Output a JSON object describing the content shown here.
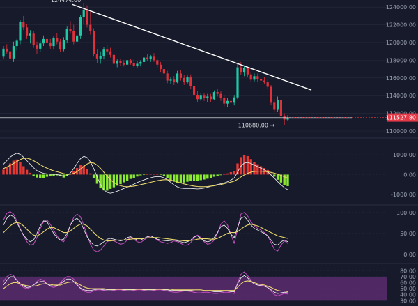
{
  "colors": {
    "background": "#161a2b",
    "up": "#1ec9a4",
    "down": "#e0303a",
    "hist_pos": "#e53935",
    "hist_neg": "#8bea2e",
    "line_white": "#e8e8ea",
    "line_yellow": "#ecd86a",
    "line_pink": "#c64fc0",
    "rsi_band": "#5b2d6e",
    "current_tag": "#e53947",
    "grid": "#262b3d",
    "axis_text": "#9aa0ad"
  },
  "chart_data": [
    {
      "type": "candlestick",
      "name": "price",
      "y_ticks": [
        110000,
        112000,
        114000,
        116000,
        118000,
        120000,
        122000,
        124000
      ],
      "y_tick_labels": [
        "110000.00",
        "112000.00",
        "114000.00",
        "116000.00",
        "118000.00",
        "120000.00",
        "122000.00",
        "124000.00"
      ],
      "ylim": [
        110000,
        124800
      ],
      "current_price": 111527.8,
      "current_price_label": "111527.80",
      "top_label_partial": "124474.00",
      "annotation": "110680.00 →",
      "support_level": 111470,
      "trendline": {
        "from": [
          104,
          124300
        ],
        "to": [
          447,
          114630
        ]
      },
      "candles": [
        [
          118400,
          119600,
          118100,
          119300
        ],
        [
          119300,
          119800,
          118700,
          119000
        ],
        [
          119000,
          119200,
          117900,
          118200
        ],
        [
          118200,
          120100,
          117800,
          119600
        ],
        [
          119600,
          120400,
          119100,
          120200
        ],
        [
          120200,
          122600,
          119800,
          122300
        ],
        [
          122300,
          123000,
          121400,
          121700
        ],
        [
          121700,
          122100,
          120400,
          120800
        ],
        [
          120800,
          121400,
          119900,
          121000
        ],
        [
          121000,
          121300,
          119400,
          119700
        ],
        [
          119700,
          120100,
          118700,
          119300
        ],
        [
          119300,
          120200,
          118900,
          119900
        ],
        [
          119900,
          120800,
          119600,
          120400
        ],
        [
          120400,
          121100,
          119700,
          120000
        ],
        [
          120000,
          120400,
          119300,
          119600
        ],
        [
          119600,
          120700,
          119200,
          120500
        ],
        [
          120500,
          121100,
          119800,
          120100
        ],
        [
          120100,
          120400,
          118900,
          119200
        ],
        [
          119200,
          120600,
          119000,
          120300
        ],
        [
          120300,
          121800,
          120000,
          121500
        ],
        [
          121500,
          122400,
          121000,
          121300
        ],
        [
          121300,
          122000,
          119800,
          120100
        ],
        [
          120100,
          121000,
          119600,
          120800
        ],
        [
          120800,
          123100,
          120400,
          122900
        ],
        [
          122900,
          124474,
          122100,
          123700
        ],
        [
          123700,
          124200,
          121700,
          122000
        ],
        [
          122000,
          123600,
          120900,
          121300
        ],
        [
          121300,
          121600,
          118400,
          118700
        ],
        [
          118700,
          119200,
          117700,
          118200
        ],
        [
          118200,
          119000,
          117600,
          118500
        ],
        [
          118500,
          119500,
          118100,
          119200
        ],
        [
          119200,
          119800,
          118600,
          119000
        ],
        [
          119000,
          119400,
          118300,
          118600
        ],
        [
          118600,
          118800,
          117300,
          117600
        ],
        [
          117600,
          118100,
          117200,
          117900
        ],
        [
          117900,
          118200,
          117400,
          117700
        ],
        [
          117700,
          118000,
          117300,
          117500
        ],
        [
          117500,
          118300,
          117300,
          118000
        ],
        [
          118000,
          118200,
          117500,
          117700
        ],
        [
          117700,
          118100,
          117200,
          117400
        ],
        [
          117400,
          117900,
          117100,
          117600
        ],
        [
          117600,
          118000,
          117300,
          117800
        ],
        [
          117800,
          118500,
          117600,
          118300
        ],
        [
          118300,
          118700,
          117900,
          118100
        ],
        [
          118100,
          118600,
          117800,
          118400
        ],
        [
          118400,
          118800,
          117800,
          118000
        ],
        [
          118000,
          118200,
          117200,
          117500
        ],
        [
          117500,
          117800,
          116600,
          117000
        ],
        [
          117000,
          117300,
          116200,
          116500
        ],
        [
          116500,
          116800,
          115400,
          115700
        ],
        [
          115700,
          116100,
          115300,
          115800
        ],
        [
          115800,
          116200,
          115200,
          115500
        ],
        [
          115500,
          116800,
          115400,
          116500
        ],
        [
          116500,
          116900,
          115700,
          116000
        ],
        [
          116000,
          116300,
          115200,
          115500
        ],
        [
          115500,
          116300,
          115300,
          116100
        ],
        [
          116100,
          116400,
          114800,
          115100
        ],
        [
          115100,
          115400,
          113800,
          114100
        ],
        [
          114100,
          114500,
          113300,
          113600
        ],
        [
          113600,
          114300,
          113400,
          114000
        ],
        [
          114000,
          114300,
          113400,
          113700
        ],
        [
          113700,
          114200,
          113300,
          113900
        ],
        [
          113900,
          114200,
          113300,
          113600
        ],
        [
          113600,
          114600,
          113500,
          114400
        ],
        [
          114400,
          114800,
          113900,
          114200
        ],
        [
          114200,
          114500,
          113400,
          113700
        ],
        [
          113700,
          114000,
          112800,
          113100
        ],
        [
          113100,
          113700,
          112700,
          113400
        ],
        [
          113400,
          113800,
          112900,
          113200
        ],
        [
          113200,
          114000,
          112900,
          113800
        ],
        [
          113800,
          117600,
          113600,
          117200
        ],
        [
          117200,
          117800,
          116300,
          116600
        ],
        [
          116600,
          117400,
          116200,
          117100
        ],
        [
          117100,
          117300,
          116100,
          116400
        ],
        [
          116400,
          116600,
          115500,
          115800
        ],
        [
          115800,
          116500,
          115600,
          116200
        ],
        [
          116200,
          116500,
          115500,
          115900
        ],
        [
          115900,
          116200,
          115400,
          115700
        ],
        [
          115700,
          116100,
          115300,
          115500
        ],
        [
          115500,
          115800,
          114700,
          115000
        ],
        [
          115000,
          115200,
          112900,
          113200
        ],
        [
          113200,
          113600,
          112100,
          112400
        ],
        [
          112400,
          113900,
          112200,
          113500
        ],
        [
          113500,
          113800,
          111300,
          111700
        ],
        [
          111700,
          112000,
          110680,
          111300
        ],
        [
          111300,
          111800,
          111100,
          111527.8
        ]
      ]
    },
    {
      "type": "line_histogram",
      "name": "macd",
      "y_ticks": [
        1000,
        0,
        -1000
      ],
      "y_tick_labels": [
        "1000.00",
        "0.00",
        "-1000.00"
      ],
      "ylim": [
        -1250,
        1350
      ],
      "histogram": [
        250,
        400,
        560,
        700,
        760,
        620,
        420,
        240,
        90,
        -60,
        -150,
        -180,
        -160,
        -110,
        -90,
        -60,
        -40,
        -90,
        -150,
        -80,
        40,
        160,
        330,
        480,
        450,
        270,
        60,
        -180,
        -460,
        -690,
        -800,
        -810,
        -720,
        -640,
        -560,
        -480,
        -390,
        -300,
        -220,
        -160,
        -100,
        -40,
        -20,
        10,
        30,
        40,
        20,
        -20,
        -80,
        -170,
        -280,
        -360,
        -420,
        -430,
        -400,
        -360,
        -330,
        -320,
        -310,
        -280,
        -250,
        -210,
        -160,
        -110,
        -70,
        -30,
        10,
        60,
        120,
        160,
        560,
        880,
        980,
        930,
        780,
        640,
        520,
        420,
        330,
        230,
        60,
        -100,
        -260,
        -400,
        -520,
        -580
      ],
      "macd_line": [
        520,
        700,
        880,
        1000,
        1080,
        1020,
        880,
        700,
        520,
        340,
        200,
        120,
        60,
        40,
        20,
        10,
        0,
        -30,
        -80,
        -60,
        80,
        300,
        560,
        800,
        920,
        860,
        640,
        300,
        -120,
        -500,
        -760,
        -900,
        -940,
        -900,
        -840,
        -770,
        -700,
        -630,
        -560,
        -480,
        -400,
        -330,
        -270,
        -210,
        -160,
        -120,
        -100,
        -110,
        -160,
        -260,
        -390,
        -520,
        -620,
        -680,
        -700,
        -700,
        -700,
        -710,
        -720,
        -710,
        -680,
        -640,
        -590,
        -540,
        -500,
        -460,
        -420,
        -360,
        -280,
        -170,
        120,
        420,
        580,
        610,
        560,
        480,
        400,
        320,
        240,
        140,
        -20,
        -180,
        -360,
        -520,
        -660,
        -760
      ],
      "signal_line": [
        300,
        380,
        460,
        560,
        660,
        760,
        820,
        830,
        780,
        700,
        600,
        500,
        400,
        320,
        250,
        190,
        140,
        100,
        50,
        20,
        20,
        60,
        150,
        270,
        410,
        530,
        600,
        580,
        480,
        320,
        120,
        -80,
        -260,
        -400,
        -500,
        -560,
        -600,
        -610,
        -600,
        -580,
        -550,
        -510,
        -470,
        -430,
        -390,
        -350,
        -310,
        -280,
        -260,
        -260,
        -280,
        -320,
        -370,
        -420,
        -470,
        -510,
        -550,
        -580,
        -600,
        -610,
        -610,
        -600,
        -580,
        -560,
        -530,
        -500,
        -460,
        -420,
        -380,
        -330,
        -240,
        -120,
        -20,
        60,
        120,
        160,
        170,
        170,
        160,
        140,
        110,
        70,
        20,
        -40,
        -110,
        -180
      ]
    },
    {
      "type": "line",
      "name": "oscillator_1",
      "y_ticks": [
        100,
        50,
        0
      ],
      "y_tick_labels": [
        "100.00",
        "50.00",
        "0.00"
      ],
      "ylim": [
        -12,
        108
      ],
      "pink": [
        82,
        98,
        102,
        96,
        80,
        62,
        44,
        30,
        22,
        24,
        40,
        62,
        78,
        82,
        72,
        58,
        44,
        34,
        30,
        44,
        70,
        88,
        96,
        90,
        70,
        46,
        24,
        10,
        6,
        10,
        20,
        30,
        34,
        32,
        28,
        24,
        26,
        34,
        40,
        36,
        30,
        28,
        34,
        40,
        44,
        40,
        34,
        30,
        28,
        26,
        28,
        32,
        30,
        26,
        22,
        22,
        28,
        40,
        46,
        40,
        30,
        24,
        26,
        34,
        50,
        72,
        80,
        70,
        48,
        26,
        60,
        96,
        100,
        92,
        78,
        68,
        62,
        58,
        52,
        44,
        28,
        12,
        8,
        22,
        32,
        26
      ],
      "white": [
        70,
        86,
        94,
        90,
        76,
        60,
        46,
        36,
        30,
        34,
        50,
        68,
        80,
        78,
        64,
        50,
        40,
        34,
        36,
        50,
        70,
        82,
        86,
        78,
        60,
        42,
        30,
        22,
        20,
        24,
        30,
        36,
        38,
        36,
        34,
        32,
        34,
        40,
        42,
        38,
        34,
        34,
        38,
        42,
        44,
        40,
        36,
        34,
        33,
        32,
        33,
        34,
        32,
        30,
        28,
        30,
        34,
        42,
        44,
        38,
        32,
        30,
        32,
        40,
        52,
        66,
        70,
        62,
        48,
        40,
        64,
        86,
        90,
        82,
        70,
        62,
        58,
        54,
        50,
        44,
        34,
        24,
        22,
        30,
        34,
        30
      ],
      "yellow": [
        52,
        60,
        68,
        74,
        76,
        74,
        68,
        60,
        52,
        46,
        44,
        48,
        54,
        60,
        64,
        64,
        60,
        56,
        52,
        52,
        56,
        62,
        68,
        72,
        72,
        68,
        60,
        52,
        44,
        38,
        34,
        32,
        32,
        33,
        34,
        34,
        34,
        35,
        36,
        37,
        37,
        37,
        38,
        39,
        40,
        40,
        40,
        39,
        38,
        37,
        36,
        35,
        34,
        33,
        32,
        32,
        33,
        34,
        36,
        37,
        37,
        37,
        36,
        36,
        38,
        42,
        46,
        50,
        52,
        52,
        54,
        60,
        66,
        70,
        72,
        70,
        68,
        64,
        60,
        56,
        52,
        48,
        44,
        42,
        40,
        38
      ]
    },
    {
      "type": "line",
      "name": "oscillator_2",
      "y_ticks": [
        80,
        70,
        60,
        50,
        40,
        30
      ],
      "y_tick_labels": [
        "80.00",
        "70.00",
        "60.00",
        "50.00",
        "40.00",
        "30.00"
      ],
      "ylim": [
        28,
        85
      ],
      "band": [
        30,
        70
      ],
      "pink": [
        62,
        70,
        74,
        72,
        64,
        56,
        52,
        50,
        52,
        56,
        62,
        66,
        64,
        58,
        54,
        52,
        54,
        60,
        66,
        70,
        70,
        66,
        58,
        50,
        46,
        44,
        44,
        46,
        48,
        48,
        47,
        46,
        46,
        47,
        48,
        48,
        47,
        46,
        46,
        47,
        48,
        48,
        47,
        46,
        46,
        47,
        48,
        48,
        47,
        46,
        45,
        44,
        44,
        45,
        46,
        46,
        45,
        44,
        43,
        43,
        44,
        44,
        43,
        42,
        42,
        43,
        44,
        44,
        43,
        42,
        60,
        74,
        78,
        72,
        64,
        58,
        56,
        56,
        54,
        52,
        46,
        40,
        38,
        40,
        42,
        41
      ],
      "white": [
        56,
        64,
        70,
        70,
        64,
        58,
        54,
        52,
        53,
        56,
        60,
        62,
        62,
        58,
        55,
        54,
        55,
        58,
        62,
        66,
        66,
        62,
        56,
        51,
        48,
        47,
        47,
        48,
        49,
        49,
        48,
        48,
        48,
        48,
        49,
        49,
        48,
        48,
        48,
        48,
        49,
        49,
        48,
        48,
        48,
        48,
        49,
        49,
        48,
        48,
        47,
        47,
        47,
        47,
        47,
        47,
        47,
        46,
        46,
        46,
        46,
        46,
        46,
        45,
        45,
        45,
        46,
        46,
        45,
        45,
        58,
        68,
        72,
        68,
        62,
        58,
        56,
        55,
        54,
        52,
        48,
        44,
        42,
        43,
        44,
        43
      ],
      "yellow": [
        50,
        54,
        58,
        60,
        60,
        58,
        56,
        55,
        54,
        54,
        55,
        57,
        58,
        58,
        57,
        56,
        56,
        56,
        58,
        60,
        61,
        61,
        59,
        56,
        53,
        51,
        50,
        50,
        50,
        50,
        50,
        49,
        49,
        49,
        49,
        49,
        49,
        49,
        49,
        49,
        49,
        49,
        49,
        49,
        49,
        49,
        49,
        49,
        49,
        49,
        49,
        48,
        48,
        48,
        48,
        48,
        48,
        48,
        48,
        48,
        47,
        47,
        47,
        47,
        47,
        47,
        47,
        47,
        47,
        47,
        52,
        58,
        62,
        63,
        62,
        60,
        58,
        57,
        56,
        54,
        52,
        49,
        47,
        46,
        46,
        45
      ]
    }
  ]
}
